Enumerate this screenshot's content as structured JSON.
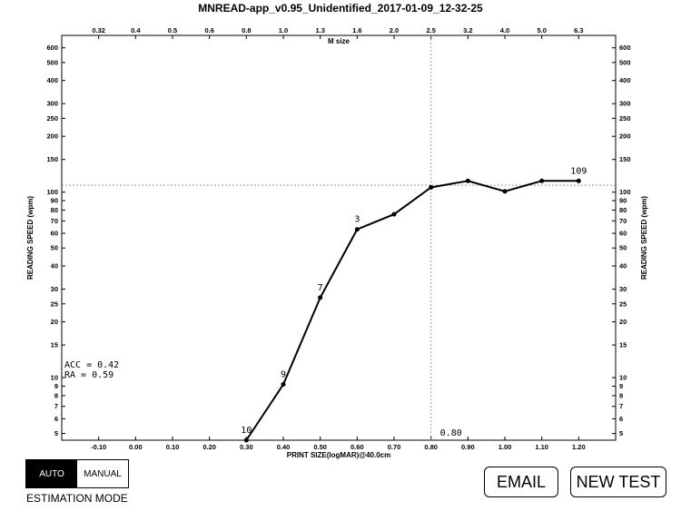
{
  "chart_data": {
    "type": "line",
    "title": "MNREAD-app_v0.95_Unidentified_2017-01-09_12-32-25",
    "xlabel": "PRINT SIZE(logMAR)@40.0cm",
    "ylabel": "READING SPEED (wpm)",
    "top_axis_label": "M size",
    "xlim": [
      -0.2,
      1.3
    ],
    "ylim": [
      4.6,
      700
    ],
    "y_scale": "log",
    "x_ticks": [
      -0.1,
      0.0,
      0.1,
      0.2,
      0.3,
      0.4,
      0.5,
      0.6,
      0.7,
      0.8,
      0.9,
      1.0,
      1.1,
      1.2
    ],
    "x_tick_labels": [
      "-0.10",
      "0.00",
      "0.10",
      "0.20",
      "0.30",
      "0.40",
      "0.50",
      "0.60",
      "0.70",
      "0.80",
      "0.90",
      "1.00",
      "1.10",
      "1.20"
    ],
    "top_ticks": [
      -0.1,
      0.0,
      0.1,
      0.2,
      0.3,
      0.4,
      0.5,
      0.6,
      0.7,
      0.8,
      0.9,
      1.0,
      1.1,
      1.2
    ],
    "top_tick_labels": [
      "0.32",
      "0.4",
      "0.5",
      "0.6",
      "0.8",
      "1.0",
      "1.3",
      "1.6",
      "2.0",
      "2.5",
      "3.2",
      "4.0",
      "5.0",
      "6.3"
    ],
    "y_ticks": [
      5,
      6,
      7,
      8,
      9,
      10,
      15,
      20,
      25,
      30,
      40,
      50,
      60,
      70,
      80,
      90,
      100,
      150,
      200,
      250,
      300,
      400,
      500,
      600
    ],
    "y_tick_labels": [
      "5",
      "6",
      "7",
      "8",
      "9",
      "10",
      "15",
      "20",
      "25",
      "30",
      "40",
      "50",
      "60",
      "70",
      "80",
      "90",
      "100",
      "150",
      "200",
      "250",
      "300",
      "400",
      "500",
      "600"
    ],
    "x": [
      0.3,
      0.4,
      0.5,
      0.6,
      0.7,
      0.8,
      0.9,
      1.0,
      1.1,
      1.2
    ],
    "y": [
      4.6,
      9.2,
      27,
      63,
      76,
      106,
      115,
      101,
      115,
      115
    ],
    "point_labels": [
      {
        "x": 0.3,
        "y": 4.6,
        "text": "10",
        "pos": "above"
      },
      {
        "x": 0.4,
        "y": 9.2,
        "text": "9",
        "pos": "above"
      },
      {
        "x": 0.5,
        "y": 27,
        "text": "7",
        "pos": "above"
      },
      {
        "x": 0.6,
        "y": 63,
        "text": "3",
        "pos": "above"
      },
      {
        "x": 1.2,
        "y": 115,
        "text": "109",
        "pos": "above"
      }
    ],
    "reference_lines": {
      "critical_print_size": 0.8,
      "max_reading_speed": 109
    },
    "cps_label": "0.80",
    "acc_text": "ACC = 0.42",
    "ra_text": "RA  = 0.59",
    "grid": false,
    "line_color": "#000000",
    "ref_line_color": "#888888"
  },
  "controls": {
    "auto_label": "AUTO",
    "manual_label": "MANUAL",
    "estimation_mode_label": "ESTIMATION MODE",
    "email_label": "EMAIL",
    "new_test_label": "NEW TEST"
  }
}
